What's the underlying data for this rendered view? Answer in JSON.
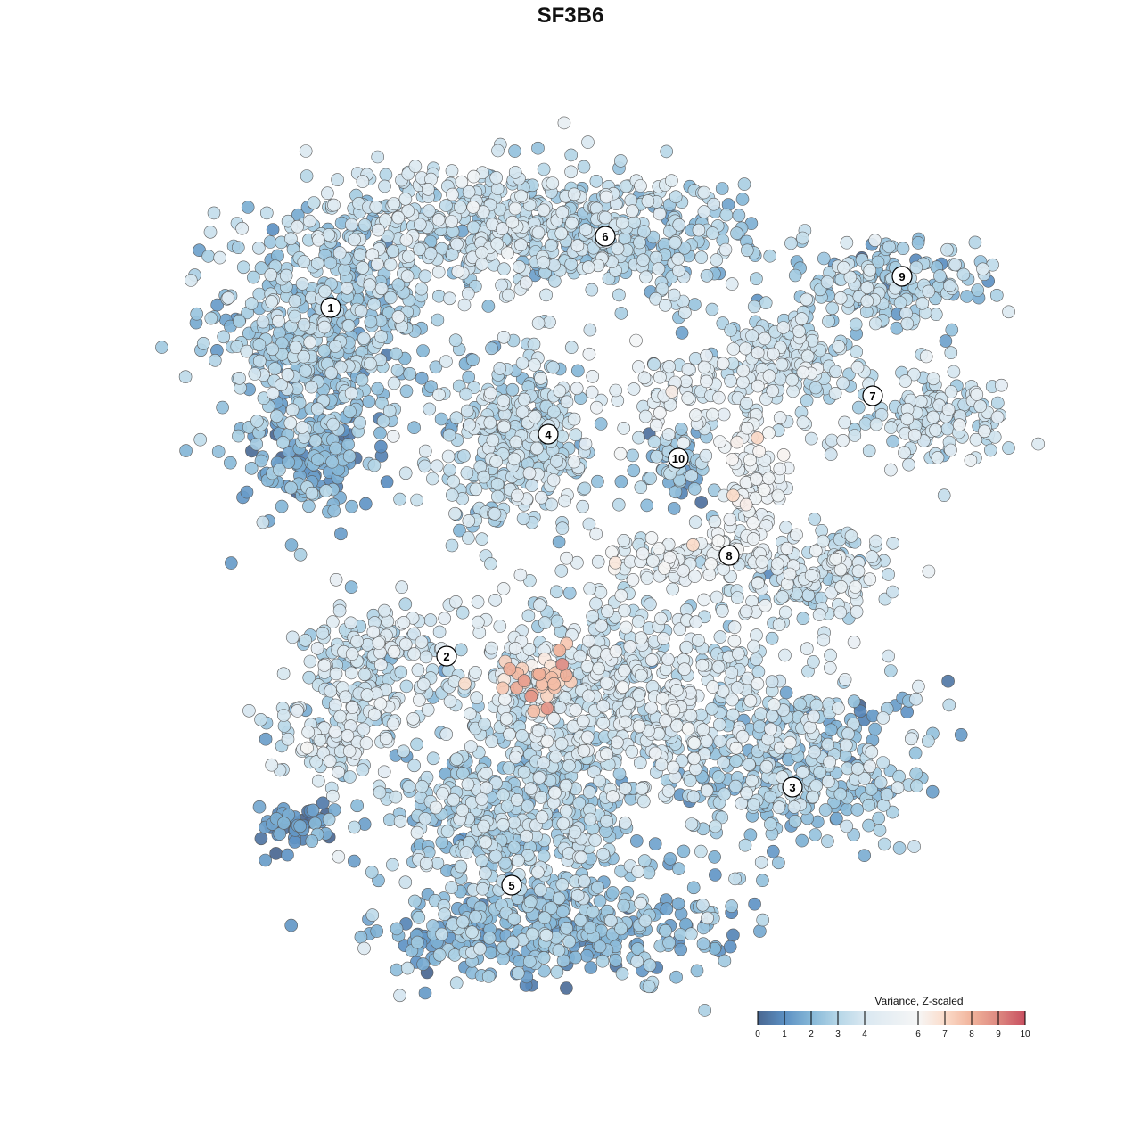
{
  "chart_data": {
    "type": "scatter",
    "title": "SF3B6",
    "xlabel": "",
    "ylabel": "",
    "axes_visible": false,
    "grid": false,
    "xlim": [
      -45,
      50
    ],
    "ylim": [
      -46,
      46
    ],
    "color_scale": {
      "title": "Variance, Z-scaled",
      "range": [
        0,
        10
      ],
      "ticks": [
        0,
        1,
        2,
        3,
        4,
        6,
        7,
        8,
        9,
        10
      ],
      "stops": [
        {
          "value": 0,
          "color": "#4a6791"
        },
        {
          "value": 1,
          "color": "#5b8fc2"
        },
        {
          "value": 2,
          "color": "#86b8d8"
        },
        {
          "value": 3,
          "color": "#b5d6e7"
        },
        {
          "value": 4,
          "color": "#dae8f1"
        },
        {
          "value": 6,
          "color": "#f6f6f6"
        },
        {
          "value": 7,
          "color": "#fbdcca"
        },
        {
          "value": 8,
          "color": "#f1b39b"
        },
        {
          "value": 9,
          "color": "#dd8880"
        },
        {
          "value": 10,
          "color": "#c84f60"
        }
      ],
      "placement": "bottom-right"
    },
    "cluster_labels": [
      {
        "label": "1",
        "x": -26.9,
        "y": 29.5
      },
      {
        "label": "6",
        "x": 3.9,
        "y": 37.5
      },
      {
        "label": "9",
        "x": 37.2,
        "y": 33.0
      },
      {
        "label": "7",
        "x": 33.9,
        "y": 19.6
      },
      {
        "label": "4",
        "x": -2.5,
        "y": 15.3
      },
      {
        "label": "10",
        "x": 12.1,
        "y": 12.6
      },
      {
        "label": "8",
        "x": 17.8,
        "y": 1.7
      },
      {
        "label": "2",
        "x": -13.9,
        "y": -9.6
      },
      {
        "label": "3",
        "x": 24.9,
        "y": -24.3
      },
      {
        "label": "5",
        "x": -6.6,
        "y": -35.3
      }
    ],
    "point_groups": [
      {
        "x": -28,
        "y": 26,
        "sx": 6.5,
        "sy": 6,
        "n": 500,
        "mean_value": 2.6
      },
      {
        "x": -29,
        "y": 12,
        "sx": 3.5,
        "sy": 3,
        "n": 120,
        "mean_value": 1.8
      },
      {
        "x": -10,
        "y": 39,
        "sx": 11,
        "sy": 3.5,
        "n": 450,
        "mean_value": 3.4
      },
      {
        "x": 8,
        "y": 37,
        "sx": 7,
        "sy": 3.5,
        "n": 250,
        "mean_value": 2.8
      },
      {
        "x": -6,
        "y": 14,
        "sx": 4.5,
        "sy": 5,
        "n": 350,
        "mean_value": 3.2
      },
      {
        "x": 24,
        "y": 24,
        "sx": 4,
        "sy": 3,
        "n": 150,
        "mean_value": 3.5
      },
      {
        "x": 35,
        "y": 32,
        "sx": 5,
        "sy": 2.5,
        "n": 170,
        "mean_value": 2.7
      },
      {
        "x": 41,
        "y": 17,
        "sx": 4.5,
        "sy": 2.5,
        "n": 150,
        "mean_value": 3.4
      },
      {
        "x": 14,
        "y": 20,
        "sx": 5,
        "sy": 2.5,
        "n": 100,
        "mean_value": 4.3
      },
      {
        "x": 12,
        "y": 12,
        "sx": 2,
        "sy": 2.5,
        "n": 60,
        "mean_value": 2.2
      },
      {
        "x": 20.5,
        "y": 9,
        "sx": 2,
        "sy": 4,
        "n": 100,
        "mean_value": 5.0
      },
      {
        "x": 28,
        "y": -1,
        "sx": 4,
        "sy": 2.5,
        "n": 150,
        "mean_value": 3.8
      },
      {
        "x": 12,
        "y": 1,
        "sx": 5,
        "sy": 1.5,
        "n": 100,
        "mean_value": 4.4
      },
      {
        "x": -22,
        "y": -10,
        "sx": 4.5,
        "sy": 3,
        "n": 150,
        "mean_value": 3.5
      },
      {
        "x": -26,
        "y": -18,
        "sx": 4,
        "sy": 2.5,
        "n": 120,
        "mean_value": 3.6
      },
      {
        "x": 6,
        "y": -14,
        "sx": 10,
        "sy": 6,
        "n": 700,
        "mean_value": 3.7
      },
      {
        "x": -4,
        "y": -12.5,
        "sx": 2.5,
        "sy": 2,
        "n": 40,
        "mean_value": 7.5
      },
      {
        "x": 26,
        "y": -22,
        "sx": 7,
        "sy": 4.5,
        "n": 350,
        "mean_value": 2.5
      },
      {
        "x": -6,
        "y": -28,
        "sx": 7,
        "sy": 5,
        "n": 450,
        "mean_value": 2.8
      },
      {
        "x": -2,
        "y": -40,
        "sx": 9,
        "sy": 3,
        "n": 400,
        "mean_value": 2.0
      },
      {
        "x": -30,
        "y": -28.5,
        "sx": 3,
        "sy": 1.5,
        "n": 50,
        "mean_value": 1.2
      }
    ]
  }
}
